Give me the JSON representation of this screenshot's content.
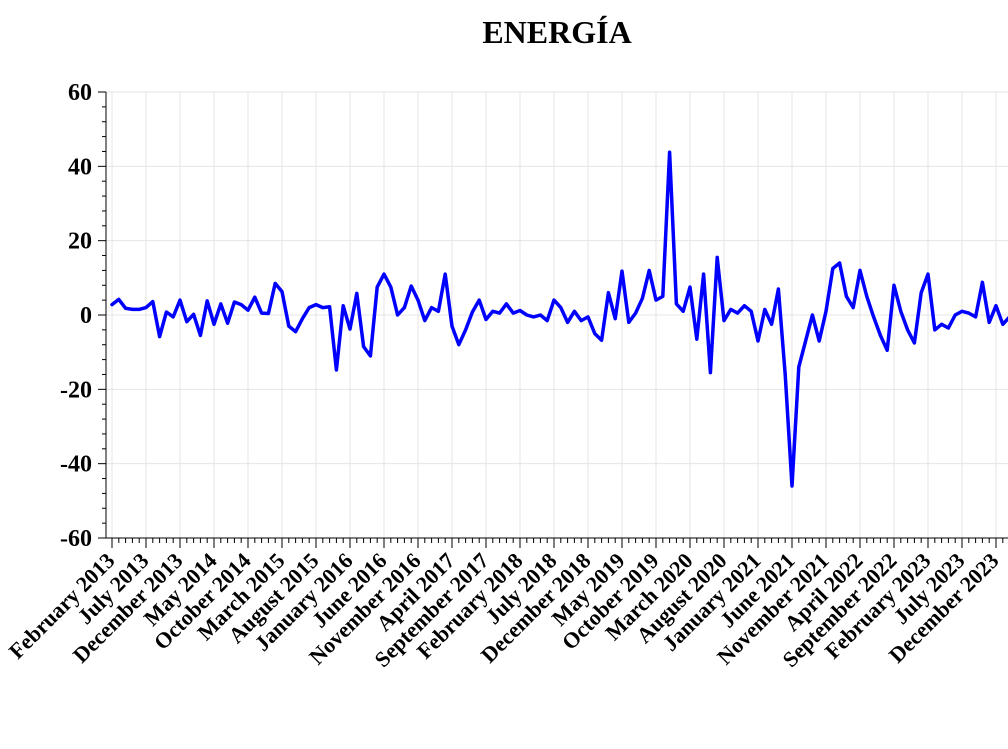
{
  "chart_data": {
    "type": "line",
    "title": "ENERGÍA",
    "xlabel": "",
    "ylabel": "",
    "ylim": [
      -60,
      60
    ],
    "yticks": [
      60,
      40,
      20,
      0,
      -20,
      -40,
      -60
    ],
    "xticks": [
      "February 2013",
      "July 2013",
      "December 2013",
      "May 2014",
      "October 2014",
      "March 2015",
      "August 2015",
      "January 2016",
      "June 2016",
      "November 2016",
      "April 2017",
      "September 2017",
      "February 2018",
      "July 2018",
      "December 2018",
      "May 2019",
      "October 2019",
      "March 2020",
      "August 2020",
      "January 2021",
      "June 2021",
      "November 2021",
      "April 2022",
      "September 2022",
      "February 2023",
      "July 2023",
      "December 2023"
    ],
    "grid": true,
    "color": "#0000ff",
    "series": [
      {
        "start": "February 2013",
        "frequency": "monthly",
        "values": [
          2.8,
          4.2,
          1.8,
          1.5,
          1.5,
          2.0,
          3.6,
          -5.8,
          0.8,
          -0.5,
          4.0,
          -1.8,
          0.2,
          -5.5,
          3.8,
          -2.5,
          3.0,
          -2.2,
          3.5,
          2.8,
          1.3,
          4.8,
          0.5,
          0.4,
          8.5,
          6.3,
          -3.0,
          -4.5,
          -1.0,
          2.0,
          2.8,
          2.0,
          2.2,
          -14.8,
          2.5,
          -3.8,
          5.8,
          -8.5,
          -11.0,
          7.5,
          11.0,
          7.5,
          0.0,
          2.0,
          7.8,
          4.0,
          -1.5,
          2.0,
          1.0,
          11.0,
          -3.0,
          -8.0,
          -4.0,
          0.8,
          4.0,
          -1.2,
          1.0,
          0.5,
          3.0,
          0.5,
          1.2,
          0.0,
          -0.5,
          0.0,
          -1.5,
          4.0,
          2.0,
          -2.0,
          1.0,
          -1.5,
          -0.5,
          -5.0,
          -6.8,
          6.0,
          -1.0,
          11.8,
          -2.0,
          0.5,
          4.5,
          12.0,
          4.0,
          5.0,
          43.8,
          3.0,
          1.0,
          7.5,
          -6.5,
          11.0,
          -15.5,
          15.5,
          -1.5,
          1.5,
          0.5,
          2.5,
          1.0,
          -7.0,
          1.5,
          -2.5,
          7.0,
          -16.0,
          -46.0,
          -14.0,
          -7.0,
          0.0,
          -7.0,
          1.0,
          12.5,
          14.0,
          5.0,
          2.0,
          12.0,
          5.0,
          -0.5,
          -5.5,
          -9.5,
          8.0,
          1.0,
          -4.0,
          -7.5,
          6.0,
          11.0,
          -4.0,
          -2.5,
          -3.5,
          0.0,
          1.0,
          0.5,
          -0.5,
          8.8,
          -2.0,
          2.5,
          -2.5,
          -0.5,
          -2.0
        ]
      }
    ]
  }
}
